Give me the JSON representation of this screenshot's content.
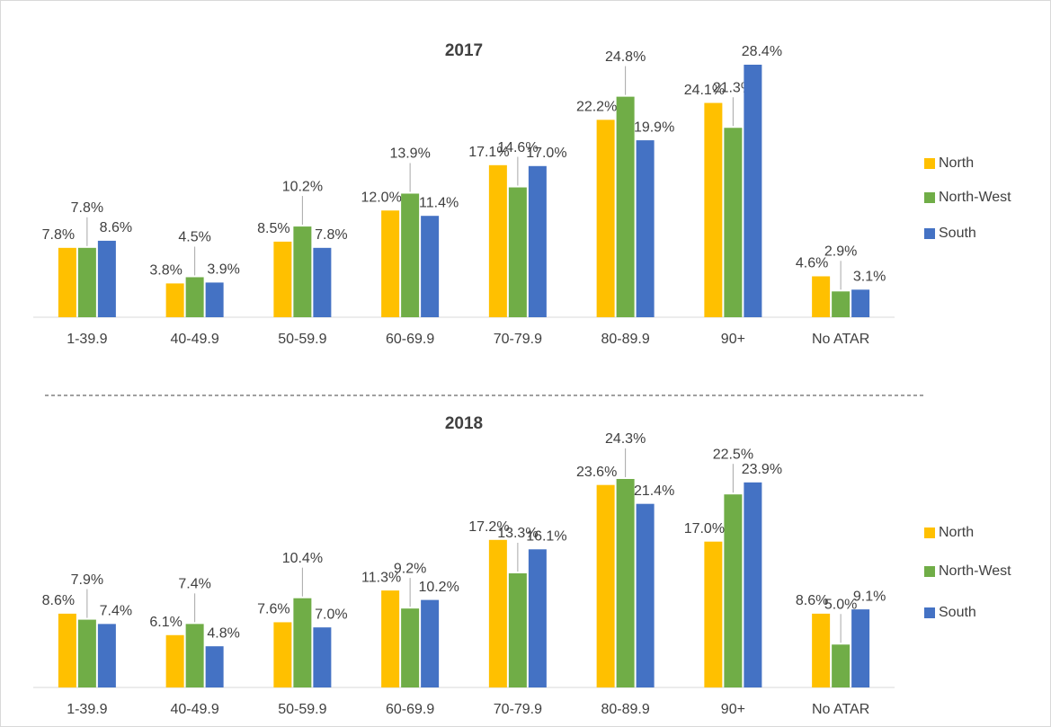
{
  "chart_data": [
    {
      "type": "bar",
      "title": "2017",
      "categories": [
        "1-39.9",
        "40-49.9",
        "50-59.9",
        "60-69.9",
        "70-79.9",
        "80-89.9",
        "90+",
        "No ATAR"
      ],
      "series": [
        {
          "name": "North",
          "color": "#FFC000",
          "values": [
            7.8,
            3.8,
            8.5,
            12.0,
            17.1,
            22.2,
            24.1,
            4.6
          ],
          "value_labels": [
            "7.8%",
            "3.8%",
            "8.5%",
            "12.0%",
            "17.1%",
            "22.2%",
            "24.1%",
            "4.6%"
          ]
        },
        {
          "name": "North-West",
          "color": "#70AD47",
          "values": [
            7.8,
            4.5,
            10.2,
            13.9,
            14.6,
            24.8,
            21.3,
            2.9
          ],
          "value_labels": [
            "7.8%",
            "4.5%",
            "10.2%",
            "13.9%",
            "14.6%",
            "24.8%",
            "21.3%",
            "2.9%"
          ]
        },
        {
          "name": "South",
          "color": "#4472C4",
          "values": [
            8.6,
            3.9,
            7.8,
            11.4,
            17.0,
            19.9,
            28.4,
            3.1
          ],
          "value_labels": [
            "8.6%",
            "3.9%",
            "7.8%",
            "11.4%",
            "17.0%",
            "19.9%",
            "28.4%",
            "3.1%"
          ]
        }
      ],
      "legend": "right"
    },
    {
      "type": "bar",
      "title": "2018",
      "categories": [
        "1-39.9",
        "40-49.9",
        "50-59.9",
        "60-69.9",
        "70-79.9",
        "80-89.9",
        "90+",
        "No ATAR"
      ],
      "series": [
        {
          "name": "North",
          "color": "#FFC000",
          "values": [
            8.6,
            6.1,
            7.6,
            11.3,
            17.2,
            23.6,
            17.0,
            8.6
          ],
          "value_labels": [
            "8.6%",
            "6.1%",
            "7.6%",
            "11.3%",
            "17.2%",
            "23.6%",
            "17.0%",
            "8.6%"
          ]
        },
        {
          "name": "North-West",
          "color": "#70AD47",
          "values": [
            7.9,
            7.4,
            10.4,
            9.2,
            13.3,
            24.3,
            22.5,
            5.0
          ],
          "value_labels": [
            "7.9%",
            "7.4%",
            "10.4%",
            "9.2%",
            "13.3%",
            "24.3%",
            "22.5%",
            "5.0%"
          ]
        },
        {
          "name": "South",
          "color": "#4472C4",
          "values": [
            7.4,
            4.8,
            7.0,
            10.2,
            16.1,
            21.4,
            23.9,
            9.1
          ],
          "value_labels": [
            "7.4%",
            "4.8%",
            "7.0%",
            "10.2%",
            "16.1%",
            "21.4%",
            "23.9%",
            "9.1%"
          ]
        }
      ],
      "legend": "right"
    }
  ]
}
